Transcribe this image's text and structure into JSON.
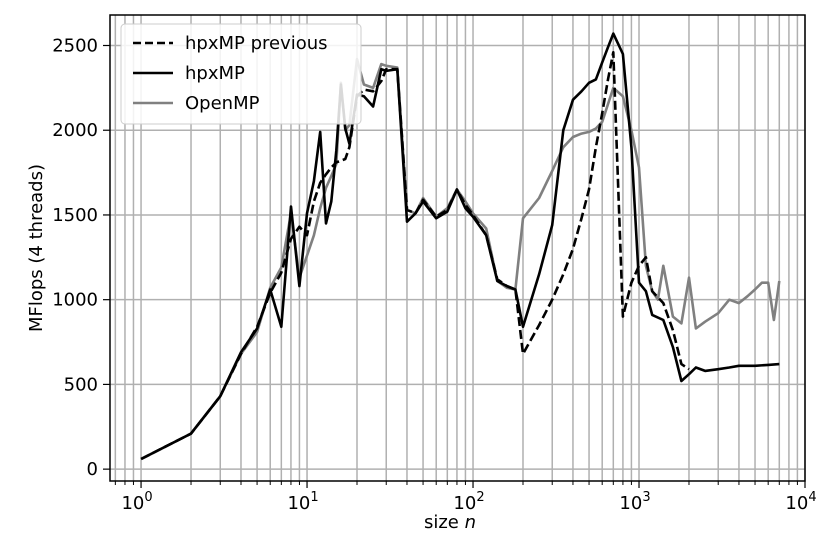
{
  "chart_data": {
    "type": "line",
    "xscale": "log",
    "xlabel": "size n",
    "xlabel_parts": {
      "prefix": "size ",
      "variable": "n"
    },
    "ylabel": "MFlops (4 threads)",
    "xlim": [
      0.65,
      10000
    ],
    "ylim": [
      -70,
      2680
    ],
    "grid": "on (major and minor x gridlines, major y gridlines)",
    "legend_placement": "top-left",
    "x_major_ticks": [
      {
        "value": 1,
        "base": "10",
        "exp": "0"
      },
      {
        "value": 10,
        "base": "10",
        "exp": "1"
      },
      {
        "value": 100,
        "base": "10",
        "exp": "2"
      },
      {
        "value": 1000,
        "base": "10",
        "exp": "3"
      },
      {
        "value": 10000,
        "base": "10",
        "exp": "4"
      }
    ],
    "y_ticks": [
      {
        "value": 0,
        "label": "0"
      },
      {
        "value": 500,
        "label": "500"
      },
      {
        "value": 1000,
        "label": "1000"
      },
      {
        "value": 1500,
        "label": "1500"
      },
      {
        "value": 2000,
        "label": "2000"
      },
      {
        "value": 2500,
        "label": "2500"
      }
    ],
    "series": [
      {
        "name": "hpxMP previous",
        "color": "#000000",
        "style": "dashed",
        "x": [
          1,
          2,
          3,
          4,
          5,
          6,
          7,
          8,
          9,
          10,
          11,
          12,
          13,
          14,
          15,
          16,
          17,
          18,
          20,
          22,
          25,
          28,
          30,
          35,
          40,
          45,
          50,
          60,
          70,
          80,
          90,
          100,
          120,
          140,
          160,
          180,
          200,
          250,
          300,
          350,
          400,
          450,
          500,
          550,
          600,
          650,
          700,
          800,
          900,
          1000,
          1100,
          1200,
          1400,
          1600,
          1800,
          2000
        ],
        "y": [
          60,
          210,
          430,
          680,
          840,
          1040,
          1160,
          1360,
          1430,
          1380,
          1580,
          1690,
          1740,
          1780,
          1810,
          1820,
          1830,
          1900,
          2200,
          2240,
          2230,
          2290,
          2360,
          2360,
          1530,
          1510,
          1590,
          1490,
          1530,
          1650,
          1560,
          1500,
          1380,
          1120,
          1080,
          1060,
          680,
          850,
          1000,
          1150,
          1300,
          1480,
          1650,
          1900,
          2100,
          2300,
          2460,
          900,
          1100,
          1200,
          1250,
          1050,
          980,
          820,
          620,
          590
        ]
      },
      {
        "name": "hpxMP",
        "color": "#000000",
        "style": "solid",
        "x": [
          1,
          2,
          3,
          4,
          5,
          6,
          7,
          8,
          9,
          10,
          11,
          12,
          13,
          14,
          15,
          16,
          17,
          18,
          20,
          22,
          25,
          28,
          30,
          35,
          40,
          45,
          50,
          60,
          70,
          80,
          90,
          100,
          120,
          140,
          160,
          180,
          200,
          250,
          300,
          350,
          400,
          450,
          500,
          550,
          600,
          650,
          700,
          800,
          900,
          1000,
          1100,
          1200,
          1400,
          1600,
          1800,
          2000,
          2200,
          2500,
          3000,
          3500,
          4000,
          4500,
          5000,
          6000,
          7000
        ],
        "y": [
          60,
          210,
          430,
          690,
          830,
          1060,
          840,
          1550,
          1080,
          1510,
          1700,
          1990,
          1450,
          1580,
          1880,
          2270,
          2010,
          1920,
          2210,
          2200,
          2140,
          2360,
          2350,
          2360,
          1460,
          1510,
          1580,
          1480,
          1520,
          1650,
          1540,
          1490,
          1380,
          1110,
          1080,
          1060,
          840,
          1150,
          1440,
          2000,
          2180,
          2230,
          2280,
          2300,
          2400,
          2490,
          2570,
          2450,
          1900,
          1100,
          1050,
          910,
          880,
          720,
          520,
          560,
          600,
          580,
          590,
          600,
          610,
          610,
          610,
          615,
          620
        ]
      },
      {
        "name": "OpenMP",
        "color": "#808080",
        "style": "solid",
        "x": [
          1,
          2,
          3,
          4,
          5,
          6,
          7,
          8,
          9,
          10,
          11,
          12,
          13,
          14,
          15,
          16,
          17,
          18,
          20,
          22,
          25,
          28,
          30,
          35,
          40,
          45,
          50,
          60,
          70,
          80,
          90,
          100,
          120,
          140,
          160,
          180,
          200,
          250,
          300,
          350,
          400,
          450,
          500,
          550,
          600,
          700,
          800,
          900,
          1000,
          1100,
          1200,
          1300,
          1400,
          1600,
          1800,
          2000,
          2200,
          2500,
          3000,
          3500,
          4000,
          4500,
          5000,
          5500,
          6000,
          6500,
          7000
        ],
        "y": [
          60,
          210,
          430,
          680,
          810,
          1070,
          1190,
          1510,
          1130,
          1260,
          1380,
          1540,
          1660,
          1730,
          1800,
          2280,
          2000,
          2030,
          2420,
          2270,
          2250,
          2390,
          2380,
          2370,
          1530,
          1510,
          1600,
          1490,
          1540,
          1650,
          1580,
          1510,
          1420,
          1110,
          1070,
          1060,
          1480,
          1600,
          1760,
          1900,
          1960,
          1980,
          1990,
          2010,
          2050,
          2250,
          2200,
          2000,
          1780,
          1200,
          1050,
          1000,
          1200,
          900,
          860,
          1130,
          830,
          870,
          920,
          1000,
          980,
          1020,
          1060,
          1100,
          1100,
          880,
          1110
        ]
      }
    ]
  }
}
